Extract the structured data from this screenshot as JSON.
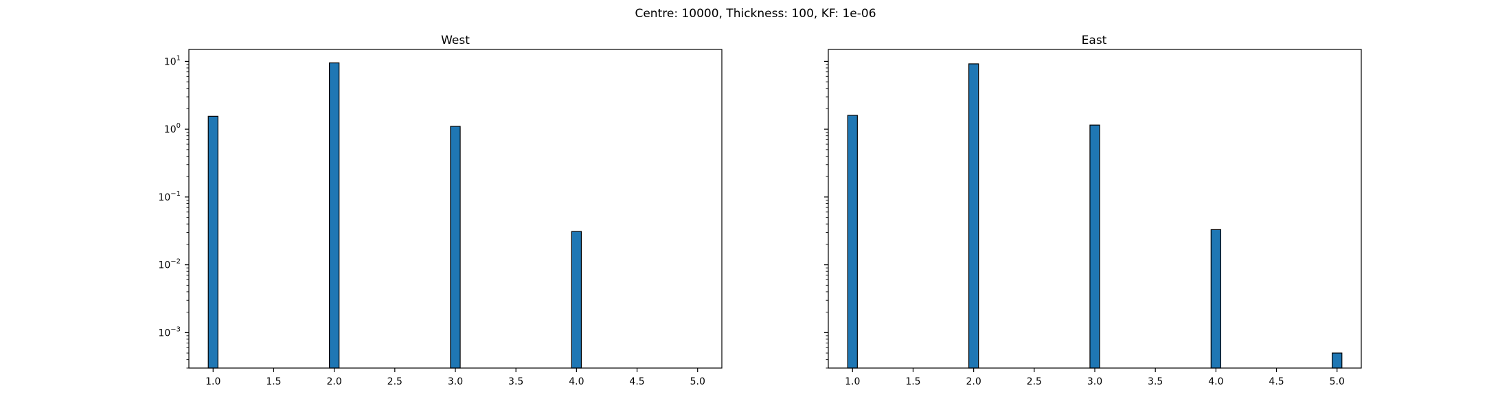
{
  "figure": {
    "suptitle": "Centre: 10000, Thickness: 100, KF: 1e-06"
  },
  "chart_data": [
    {
      "type": "bar",
      "title": "West",
      "xlabel": "",
      "ylabel": "",
      "yscale": "log",
      "xlim": [
        0.8,
        5.2
      ],
      "ylim": [
        0.0003,
        15
      ],
      "x_ticks": [
        "1.0",
        "1.5",
        "2.0",
        "2.5",
        "3.0",
        "3.5",
        "4.0",
        "4.5",
        "5.0"
      ],
      "y_ticks": [
        {
          "base": "10",
          "exp": "1"
        },
        {
          "base": "10",
          "exp": "0"
        },
        {
          "base": "10",
          "exp": "−1"
        },
        {
          "base": "10",
          "exp": "−2"
        },
        {
          "base": "10",
          "exp": "−3"
        }
      ],
      "bar_width": 0.08,
      "bar_color": "#1f77b4",
      "edge_color": "#000000",
      "x": [
        1.0,
        2.0,
        3.0,
        4.0
      ],
      "values": [
        1.55,
        9.5,
        1.1,
        0.031
      ]
    },
    {
      "type": "bar",
      "title": "East",
      "xlabel": "",
      "ylabel": "",
      "yscale": "log",
      "xlim": [
        0.8,
        5.2
      ],
      "ylim": [
        0.0003,
        15
      ],
      "x_ticks": [
        "1.0",
        "1.5",
        "2.0",
        "2.5",
        "3.0",
        "3.5",
        "4.0",
        "4.5",
        "5.0"
      ],
      "y_ticks": [],
      "bar_width": 0.08,
      "bar_color": "#1f77b4",
      "edge_color": "#000000",
      "x": [
        1.0,
        2.0,
        3.0,
        4.0,
        5.0
      ],
      "values": [
        1.6,
        9.2,
        1.15,
        0.033,
        0.0005
      ]
    }
  ]
}
